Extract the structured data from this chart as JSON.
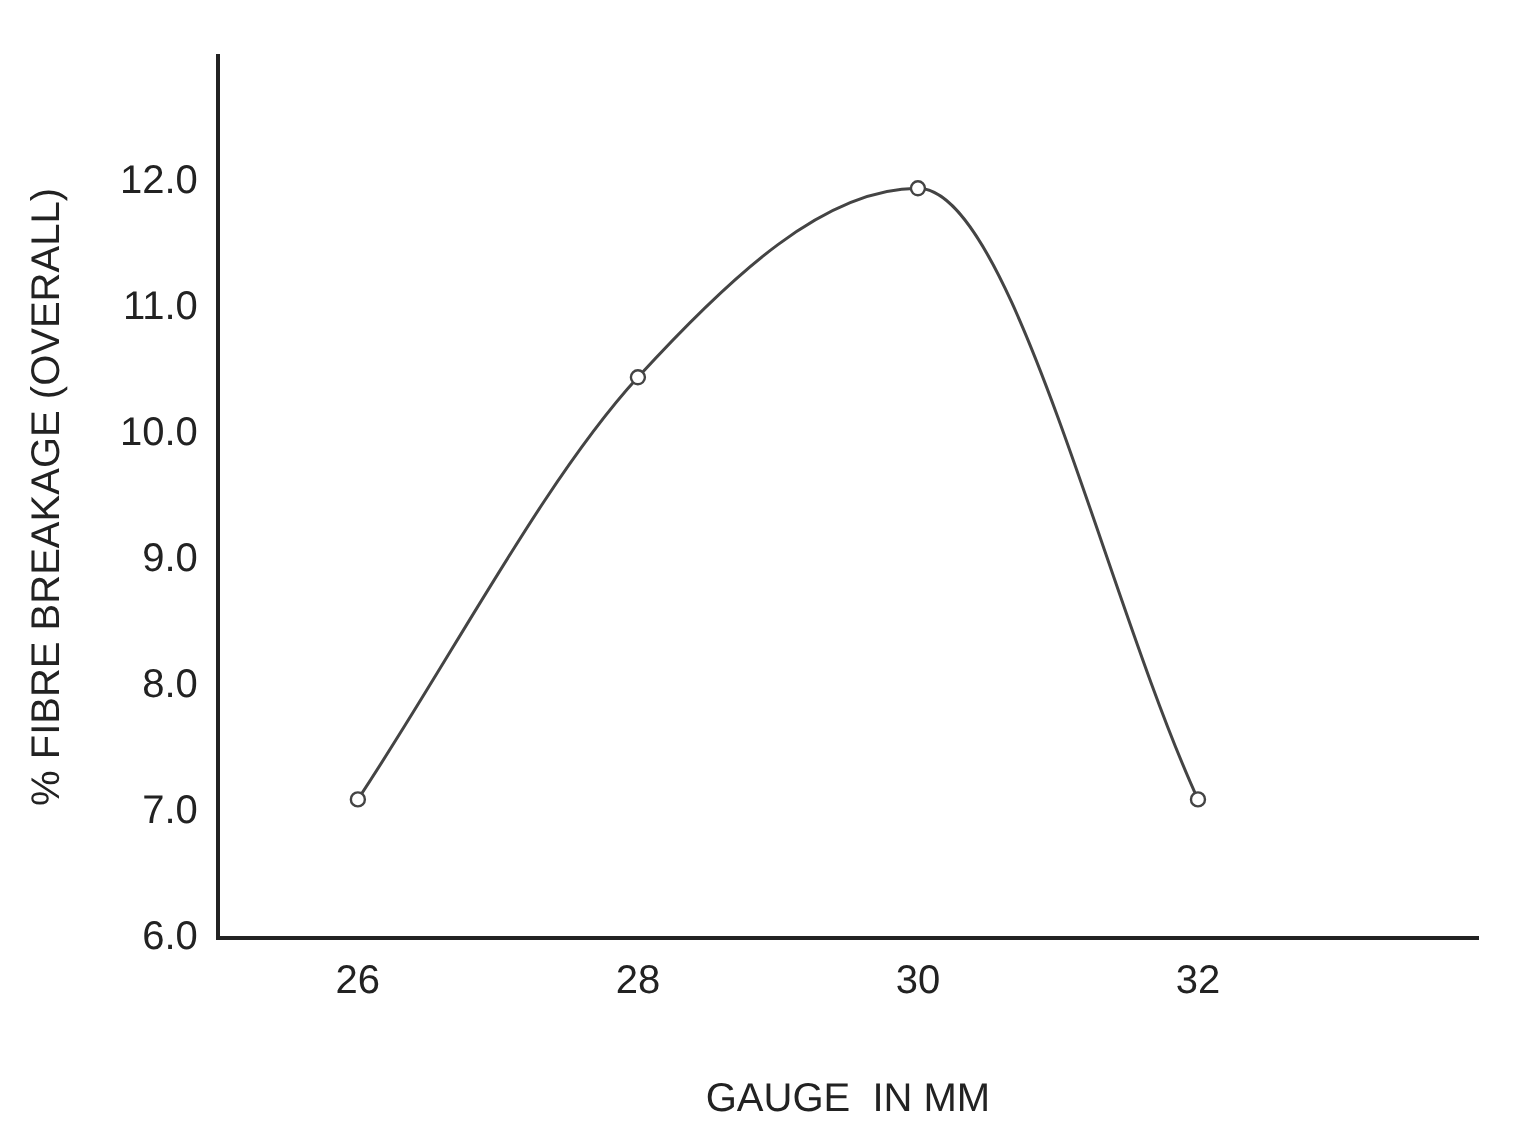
{
  "chart_data": {
    "type": "line",
    "xlabel": "GAUGE  IN MM",
    "ylabel": "% FIBRE BREAKAGE (OVERALL)",
    "x": [
      26,
      28,
      30,
      32
    ],
    "series": [
      {
        "color": "#444444",
        "values": [
          7.1,
          10.45,
          11.95,
          7.1
        ]
      }
    ],
    "xlim": [
      25,
      34
    ],
    "xticks": [
      26,
      28,
      30,
      32
    ],
    "ylim": [
      6,
      13
    ],
    "yticks": [
      {
        "value": 6,
        "label": "6.0"
      },
      {
        "value": 7,
        "label": "7.0"
      },
      {
        "value": 8,
        "label": "8.0"
      },
      {
        "value": 9,
        "label": "9.0"
      },
      {
        "value": 10,
        "label": "10.0"
      },
      {
        "value": 11,
        "label": "11.0"
      },
      {
        "value": 12,
        "label": "12.0"
      }
    ],
    "grid": false,
    "legend": false,
    "marker": "circle",
    "line_style": "solid"
  }
}
